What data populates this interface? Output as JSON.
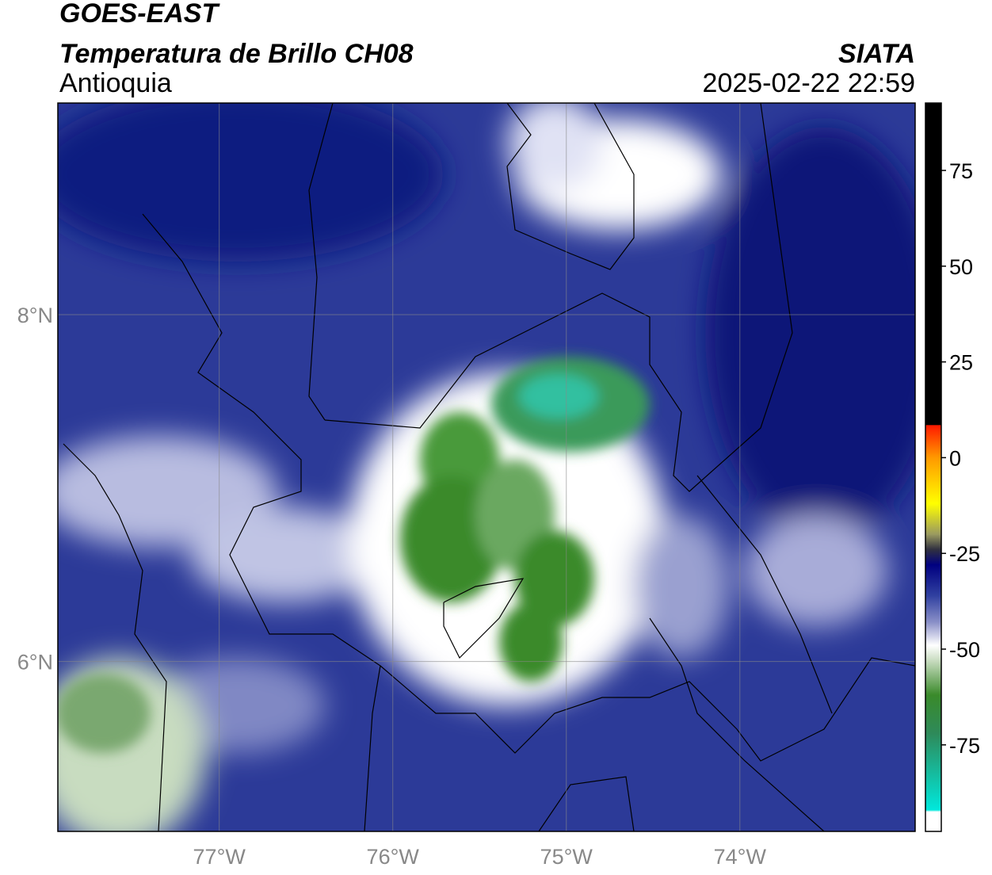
{
  "map": {
    "title": "GOES-EAST",
    "subtitle": "Temperatura de Brillo CH08",
    "region": "Antioquia",
    "source": "SIATA",
    "datetime": "2025-02-22 22:59",
    "lon_range": [
      -77.93,
      -72.99
    ],
    "lat_range": [
      5.02,
      9.22
    ],
    "lon_ticks": [
      {
        "value": -77,
        "label": "77°W"
      },
      {
        "value": -76,
        "label": "76°W"
      },
      {
        "value": -75,
        "label": "75°W"
      },
      {
        "value": -74,
        "label": "74°W"
      }
    ],
    "lat_ticks": [
      {
        "value": 6,
        "label": "6°N"
      },
      {
        "value": 8,
        "label": "8°N"
      }
    ],
    "grid": true,
    "colorbar": {
      "range": [
        -97.6,
        92.6
      ],
      "ticks": [
        75,
        50,
        25,
        0,
        -25,
        -50,
        -75
      ],
      "stops": [
        [
          92.6,
          "#000000"
        ],
        [
          8.6,
          "#000000"
        ],
        [
          8.4,
          "#ff1a00"
        ],
        [
          0,
          "#ff9900"
        ],
        [
          -12,
          "#ffff00"
        ],
        [
          -20,
          "#9a9a60"
        ],
        [
          -24,
          "#303040"
        ],
        [
          -28,
          "#000080"
        ],
        [
          -36,
          "#3040a0"
        ],
        [
          -43,
          "#8a90c8"
        ],
        [
          -49,
          "#ffffff"
        ],
        [
          -53,
          "#c8dcc0"
        ],
        [
          -62,
          "#3a8a2a"
        ],
        [
          -72,
          "#2e8a5a"
        ],
        [
          -92,
          "#00e8dc"
        ],
        [
          -92.5,
          "#ffffff"
        ],
        [
          -97.6,
          "#ffffff"
        ]
      ]
    }
  }
}
